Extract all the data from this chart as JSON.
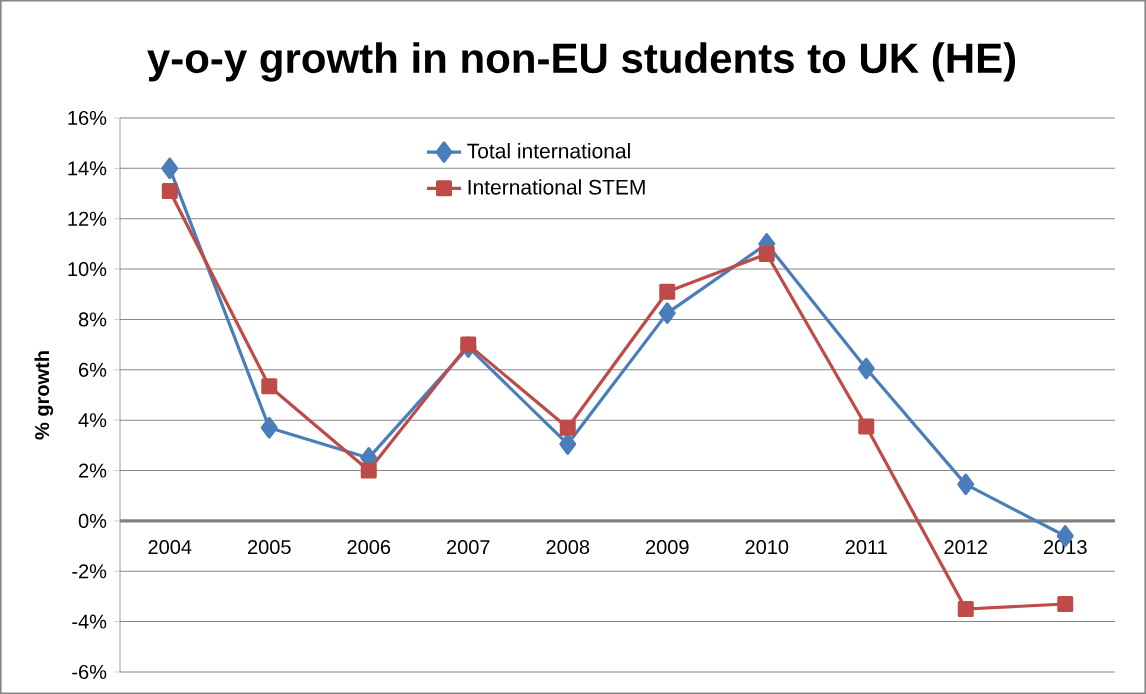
{
  "chart_data": {
    "type": "line",
    "title": "y-o-y growth in non-EU students to UK (HE)",
    "ylabel": "% growth",
    "categories": [
      "2004",
      "2005",
      "2006",
      "2007",
      "2008",
      "2009",
      "2010",
      "2011",
      "2012",
      "2013"
    ],
    "series": [
      {
        "name": "Total international",
        "color": "#4a7ebb",
        "marker": "diamond",
        "values": [
          14.0,
          3.7,
          2.5,
          6.9,
          3.05,
          8.25,
          11.0,
          6.05,
          1.45,
          -0.6
        ]
      },
      {
        "name": "International STEM",
        "color": "#be4b48",
        "marker": "square",
        "values": [
          13.1,
          5.35,
          2.0,
          7.0,
          3.7,
          9.1,
          10.6,
          3.75,
          -3.5,
          -3.3
        ]
      }
    ],
    "ylim": [
      -6,
      16
    ],
    "yticks": [
      {
        "value": -6,
        "label": "-6%"
      },
      {
        "value": -4,
        "label": "-4%"
      },
      {
        "value": -2,
        "label": "-2%"
      },
      {
        "value": 0,
        "label": "0%"
      },
      {
        "value": 2,
        "label": "2%"
      },
      {
        "value": 4,
        "label": "4%"
      },
      {
        "value": 6,
        "label": "6%"
      },
      {
        "value": 8,
        "label": "8%"
      },
      {
        "value": 10,
        "label": "10%"
      },
      {
        "value": 12,
        "label": "12%"
      },
      {
        "value": 14,
        "label": "14%"
      },
      {
        "value": 16,
        "label": "16%"
      }
    ],
    "grid": "y",
    "legend": "top",
    "line_style": "solid"
  }
}
